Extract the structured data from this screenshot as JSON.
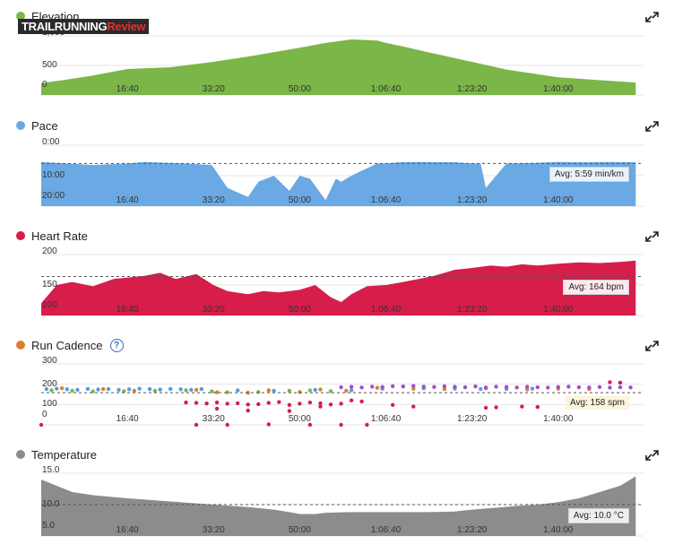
{
  "brand": {
    "part1": "TRAILRUNNING",
    "part2": "Review"
  },
  "panels": [
    {
      "title": "Elevation",
      "color": "#7ab648",
      "help": "",
      "avg_label": ""
    },
    {
      "title": "Pace",
      "color": "#6aa9e3",
      "help": "",
      "avg_label": "Avg: 5:59 min/km"
    },
    {
      "title": "Heart Rate",
      "color": "#d71d4a",
      "help": "",
      "avg_label": "Avg: 164 bpm"
    },
    {
      "title": "Run Cadence",
      "color": "#d9822b",
      "help": "?",
      "avg_label": "Avg: 158 spm"
    },
    {
      "title": "Temperature",
      "color": "#8c8c8c",
      "help": "",
      "avg_label": "Avg: 10.0 °C"
    }
  ],
  "icons": {
    "expand": "expand-icon",
    "help": "help-circle-icon"
  },
  "chart_data": [
    {
      "type": "area",
      "title": "Elevation",
      "ylim": [
        0,
        1000
      ],
      "yticks": [
        "1,000",
        "500",
        "0"
      ],
      "xticks": [
        "16:40",
        "33:20",
        "50:00",
        "1:06:40",
        "1:23:20",
        "1:40:00"
      ],
      "x_minutes": [
        0,
        5,
        10,
        16.7,
        20,
        25,
        33.3,
        40,
        50,
        55,
        60,
        65,
        66.7,
        70,
        75,
        83.3,
        90,
        100,
        105,
        115
      ],
      "values": [
        200,
        260,
        330,
        440,
        450,
        470,
        560,
        650,
        800,
        880,
        940,
        920,
        880,
        820,
        720,
        560,
        430,
        300,
        270,
        210
      ],
      "color": "#7ab648"
    },
    {
      "type": "area",
      "title": "Pace",
      "inverted": true,
      "ylim": [
        0,
        20
      ],
      "yticks": [
        "0:00",
        "10:00",
        "20:00"
      ],
      "xticks": [
        "16:40",
        "33:20",
        "50:00",
        "1:06:40",
        "1:23:20",
        "1:40:00"
      ],
      "x_minutes": [
        0,
        5,
        10,
        16.7,
        20,
        25,
        28,
        30,
        33,
        36,
        40,
        42,
        45,
        48,
        50,
        52,
        55,
        57,
        58,
        60,
        65,
        66.7,
        70,
        75,
        80,
        83.3,
        85,
        86,
        90,
        95,
        100,
        105,
        110,
        115
      ],
      "values": [
        5.5,
        6,
        6.5,
        6,
        5.5,
        5.8,
        6,
        6.2,
        6.5,
        14,
        17,
        12,
        10,
        15,
        10,
        11,
        18,
        11,
        12,
        10,
        6,
        6,
        5.5,
        5.5,
        5.6,
        6,
        6,
        14,
        6,
        5.8,
        5.5,
        5.6,
        5.5,
        5.6
      ],
      "average": 5.98,
      "avg_label": "Avg: 5:59 min/km",
      "color": "#6aa9e3"
    },
    {
      "type": "area",
      "title": "Heart Rate",
      "ylim": [
        100,
        200
      ],
      "yticks": [
        "200",
        "150",
        "100"
      ],
      "xticks": [
        "16:40",
        "33:20",
        "50:00",
        "1:06:40",
        "1:23:20",
        "1:40:00"
      ],
      "x_minutes": [
        0,
        3,
        6,
        10,
        14,
        16.7,
        20,
        23,
        26,
        30,
        33.3,
        36,
        40,
        43,
        46,
        50,
        53,
        56,
        58,
        60,
        63,
        66.7,
        70,
        73,
        76,
        80,
        83.3,
        87,
        90,
        93,
        96,
        100,
        104,
        108,
        112,
        115
      ],
      "values": [
        120,
        150,
        155,
        148,
        160,
        162,
        165,
        170,
        160,
        168,
        150,
        140,
        135,
        140,
        138,
        142,
        150,
        130,
        122,
        135,
        148,
        150,
        155,
        160,
        165,
        175,
        178,
        182,
        180,
        184,
        182,
        185,
        187,
        186,
        188,
        190
      ],
      "average": 164,
      "avg_label": "Avg: 164 bpm",
      "color": "#d71d4a"
    },
    {
      "type": "scatter",
      "title": "Run Cadence",
      "ylim": [
        0,
        300
      ],
      "yticks": [
        "300",
        "200",
        "100",
        "0"
      ],
      "xticks": [
        "16:40",
        "33:20",
        "50:00",
        "1:06:40",
        "1:23:20",
        "1:40:00"
      ],
      "series": [
        {
          "color": "#4f9fe0",
          "x_minutes": [
            1,
            3,
            5,
            7,
            9,
            11,
            13,
            15,
            17,
            19,
            21,
            23,
            25,
            27,
            29,
            31,
            38,
            45,
            53,
            60,
            66,
            74,
            80,
            85,
            90,
            95
          ],
          "values": [
            176,
            178,
            175,
            172,
            177,
            174,
            176,
            172,
            175,
            178,
            176,
            174,
            177,
            175,
            172,
            176,
            170,
            168,
            172,
            170,
            178,
            180,
            178,
            176,
            177,
            178
          ]
        },
        {
          "color": "#7ab648",
          "x_minutes": [
            2,
            6,
            10,
            16,
            22,
            28,
            33,
            36,
            42,
            48,
            52,
            56
          ],
          "values": [
            170,
            168,
            165,
            166,
            168,
            170,
            165,
            160,
            162,
            168,
            170,
            166
          ]
        },
        {
          "color": "#d9822b",
          "x_minutes": [
            4,
            12,
            18,
            30,
            34,
            40,
            44,
            50,
            54,
            59,
            65,
            72,
            78,
            86,
            94,
            100,
            106
          ],
          "values": [
            180,
            176,
            168,
            172,
            160,
            158,
            170,
            162,
            174,
            168,
            182,
            178,
            176,
            180,
            174,
            178,
            176
          ]
        },
        {
          "color": "#a34fc9",
          "x_minutes": [
            58,
            60,
            62,
            64,
            66,
            68,
            70,
            72,
            74,
            76,
            78,
            80,
            82,
            84,
            86,
            88,
            90,
            92,
            94,
            96,
            98,
            100,
            102,
            104,
            106,
            108,
            110,
            112,
            114
          ],
          "values": [
            185,
            187,
            184,
            188,
            186,
            190,
            189,
            192,
            188,
            186,
            190,
            187,
            185,
            189,
            184,
            188,
            186,
            184,
            187,
            185,
            183,
            186,
            188,
            185,
            184,
            186,
            183,
            185,
            184
          ]
        },
        {
          "color": "#d71d4a",
          "x_minutes": [
            28,
            30,
            32,
            34,
            36,
            38,
            40,
            42,
            44,
            46,
            48,
            50,
            52,
            54,
            56,
            58,
            60,
            62,
            34,
            40,
            48,
            54,
            68,
            72,
            86,
            88,
            93,
            96,
            110,
            112,
            0,
            30,
            36,
            44,
            52,
            58,
            63
          ],
          "values": [
            110,
            108,
            105,
            110,
            104,
            106,
            100,
            102,
            108,
            112,
            98,
            104,
            110,
            106,
            100,
            104,
            120,
            115,
            80,
            70,
            68,
            90,
            98,
            90,
            84,
            86,
            90,
            88,
            210,
            208,
            0,
            0,
            0,
            2,
            0,
            0,
            0
          ]
        }
      ],
      "average": 158,
      "avg_label": "Avg: 158 spm"
    },
    {
      "type": "area",
      "title": "Temperature",
      "ylim": [
        5,
        15
      ],
      "yticks": [
        "15.0",
        "10.0",
        "5.0"
      ],
      "xticks": [
        "16:40",
        "33:20",
        "50:00",
        "1:06:40",
        "1:23:20",
        "1:40:00"
      ],
      "x_minutes": [
        0,
        3,
        6,
        10,
        16.7,
        20,
        25,
        30,
        33.3,
        40,
        45,
        48,
        50,
        53,
        55,
        60,
        66.7,
        70,
        75,
        80,
        83.3,
        88,
        92,
        96,
        100,
        104,
        108,
        112,
        115
      ],
      "values": [
        14,
        13,
        12,
        11.5,
        11,
        10.8,
        10.5,
        10.2,
        10,
        9.6,
        9.2,
        8.8,
        8.5,
        8.5,
        8.7,
        8.8,
        8.8,
        8.8,
        8.8,
        8.9,
        9.2,
        9.5,
        9.8,
        10,
        10.4,
        11,
        12,
        13,
        14.5
      ],
      "average": 10.0,
      "avg_label": "Avg: 10.0 °C",
      "color": "#8c8c8c"
    }
  ]
}
